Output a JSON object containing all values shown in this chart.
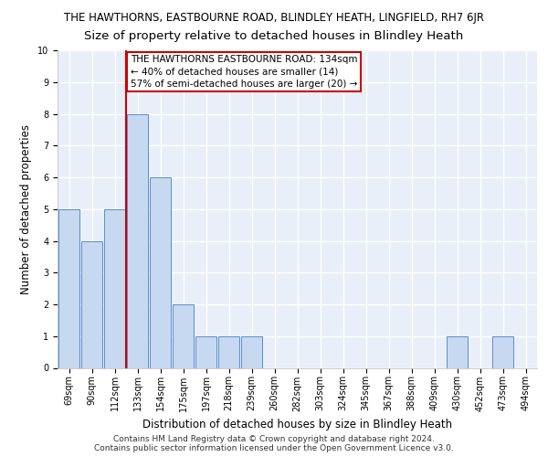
{
  "title_line1": "THE HAWTHORNS, EASTBOURNE ROAD, BLINDLEY HEATH, LINGFIELD, RH7 6JR",
  "title_line2": "Size of property relative to detached houses in Blindley Heath",
  "xlabel": "Distribution of detached houses by size in Blindley Heath",
  "ylabel": "Number of detached properties",
  "categories": [
    "69sqm",
    "90sqm",
    "112sqm",
    "133sqm",
    "154sqm",
    "175sqm",
    "197sqm",
    "218sqm",
    "239sqm",
    "260sqm",
    "282sqm",
    "303sqm",
    "324sqm",
    "345sqm",
    "367sqm",
    "388sqm",
    "409sqm",
    "430sqm",
    "452sqm",
    "473sqm",
    "494sqm"
  ],
  "values": [
    5,
    4,
    5,
    8,
    6,
    2,
    1,
    1,
    1,
    0,
    0,
    0,
    0,
    0,
    0,
    0,
    0,
    1,
    0,
    1,
    0
  ],
  "bar_color": "#c6d9f0",
  "bar_edge_color": "#5b8dc8",
  "highlight_bar_index": 3,
  "highlight_line_color": "#cc0000",
  "ylim": [
    0,
    10
  ],
  "yticks": [
    0,
    1,
    2,
    3,
    4,
    5,
    6,
    7,
    8,
    9,
    10
  ],
  "annotation_text": "THE HAWTHORNS EASTBOURNE ROAD: 134sqm\n← 40% of detached houses are smaller (14)\n57% of semi-detached houses are larger (20) →",
  "annotation_box_color": "#ffffff",
  "annotation_border_color": "#cc0000",
  "footnote1": "Contains HM Land Registry data © Crown copyright and database right 2024.",
  "footnote2": "Contains public sector information licensed under the Open Government Licence v3.0.",
  "bg_color": "#e8eff9",
  "grid_color": "#ffffff",
  "title_fontsize": 8.5,
  "subtitle_fontsize": 9.5,
  "axis_label_fontsize": 8.5,
  "tick_fontsize": 7,
  "annotation_fontsize": 7.5,
  "footnote_fontsize": 6.5
}
